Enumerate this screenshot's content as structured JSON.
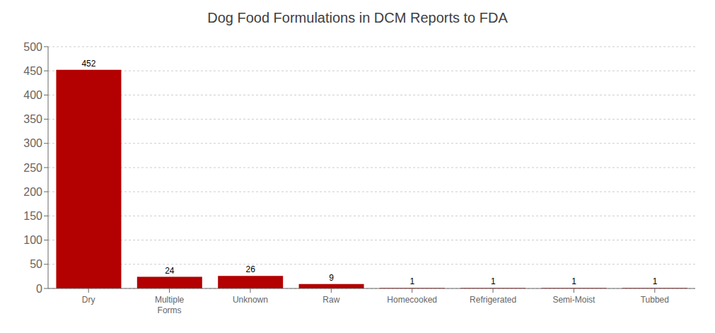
{
  "chart_data": {
    "type": "bar",
    "title": "Dog Food Formulations in DCM Reports to FDA",
    "categories": [
      "Dry",
      "Multiple\nForms",
      "Unknown",
      "Raw",
      "Homecooked",
      "Refrigerated",
      "Semi-Moist",
      "Tubbed"
    ],
    "values": [
      452,
      24,
      26,
      9,
      1,
      1,
      1,
      1
    ],
    "color": "#b30000",
    "ylim": [
      0,
      500
    ],
    "yticks": [
      0,
      50,
      100,
      150,
      200,
      250,
      300,
      350,
      400,
      450,
      500
    ],
    "grid": true,
    "data_labels": true
  }
}
